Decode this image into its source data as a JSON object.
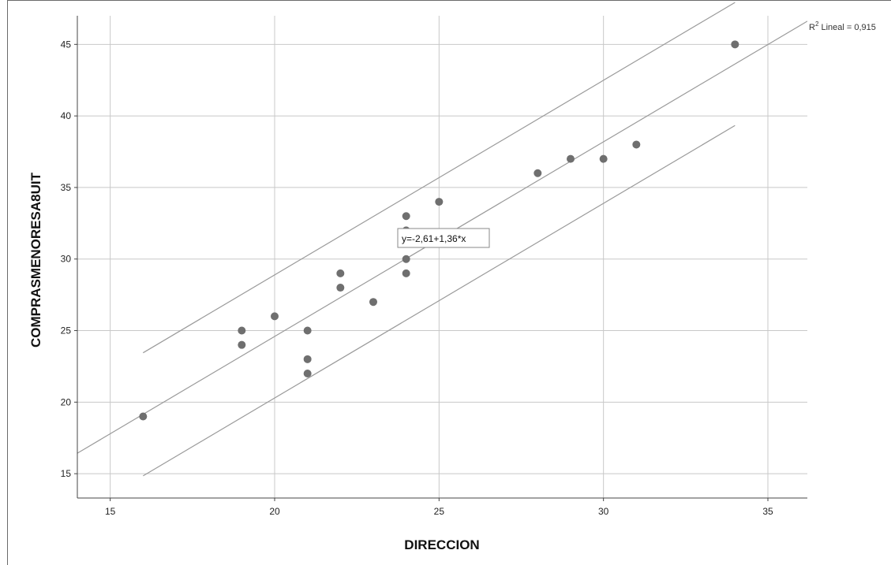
{
  "chart_data": {
    "type": "scatter",
    "xlabel": "DIRECCION",
    "ylabel": "COMPRASMENORESA8UIT",
    "xlim": [
      14,
      36.2
    ],
    "ylim": [
      13.3,
      47
    ],
    "xticks": [
      15,
      20,
      25,
      30,
      35
    ],
    "yticks": [
      15,
      20,
      25,
      30,
      35,
      40,
      45
    ],
    "grid": true,
    "points": [
      {
        "x": 16,
        "y": 19
      },
      {
        "x": 19,
        "y": 25
      },
      {
        "x": 19,
        "y": 24
      },
      {
        "x": 20,
        "y": 26
      },
      {
        "x": 21,
        "y": 25
      },
      {
        "x": 21,
        "y": 23
      },
      {
        "x": 21,
        "y": 22
      },
      {
        "x": 22,
        "y": 29
      },
      {
        "x": 22,
        "y": 28
      },
      {
        "x": 23,
        "y": 27
      },
      {
        "x": 24,
        "y": 33
      },
      {
        "x": 24,
        "y": 32
      },
      {
        "x": 24,
        "y": 30
      },
      {
        "x": 24,
        "y": 29
      },
      {
        "x": 25,
        "y": 34
      },
      {
        "x": 28,
        "y": 36
      },
      {
        "x": 29,
        "y": 37
      },
      {
        "x": 30,
        "y": 37
      },
      {
        "x": 31,
        "y": 38
      },
      {
        "x": 34,
        "y": 45
      }
    ],
    "fit_line": {
      "intercept": -2.61,
      "slope": 1.36
    },
    "confidence_band": {
      "upper_offset": 4.3,
      "lower_offset": -4.3,
      "x_range": [
        16,
        34
      ]
    },
    "fit_label_prefix": "R",
    "fit_label_sup": "2",
    "fit_label_rest": " Lineal = 0,915",
    "equation_label": "y=-2,61+1,36*x",
    "colors": {
      "points": "#6f6f6f",
      "lines": "#9a9a9a",
      "grid": "#c8c8c8",
      "axis": "#444444"
    }
  }
}
